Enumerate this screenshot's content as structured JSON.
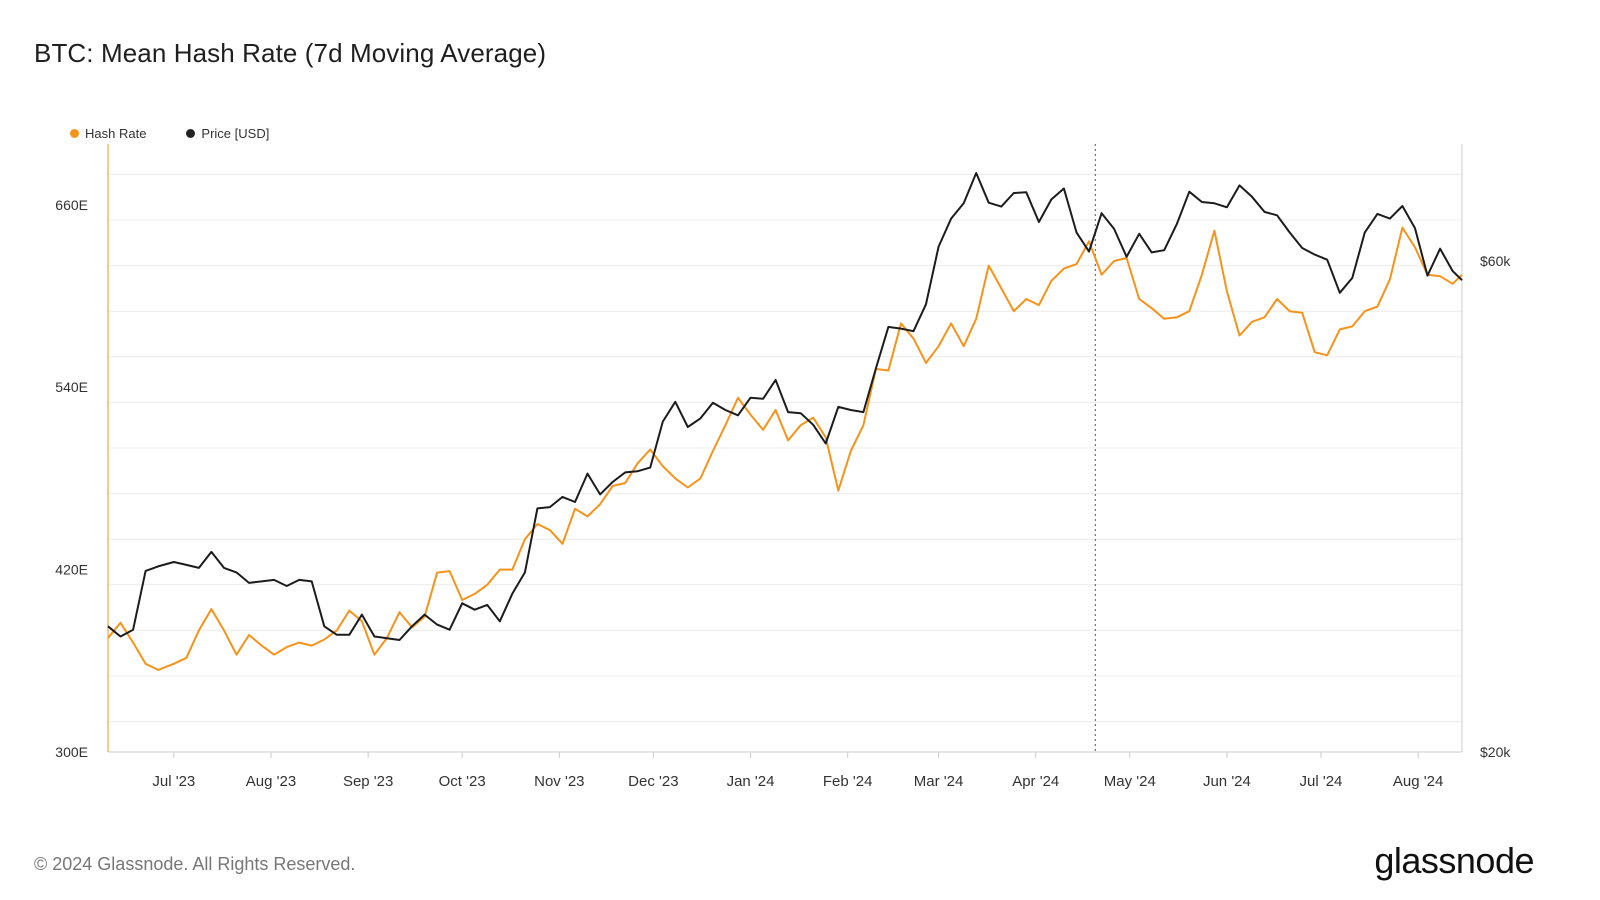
{
  "header": {
    "title": "BTC: Mean Hash Rate (7d Moving Average)"
  },
  "legend": [
    {
      "label": "Hash Rate",
      "color": "#f7931a"
    },
    {
      "label": "Price [USD]",
      "color": "#222222"
    }
  ],
  "footer": {
    "copyright": "© 2024 Glassnode. All Rights Reserved.",
    "brand": "glassnode"
  },
  "colors": {
    "hash_rate": "#f7931a",
    "price": "#1c1c1c",
    "grid": "#ececec",
    "axis": "#cccccc",
    "marker": "#555555"
  },
  "chart_data": {
    "type": "line",
    "title": "BTC: Mean Hash Rate (7d Moving Average)",
    "x_range": [
      "2023-06-10",
      "2024-08-15"
    ],
    "x_ticks": [
      {
        "date": "2023-07-01",
        "label": "Jul '23"
      },
      {
        "date": "2023-08-01",
        "label": "Aug '23"
      },
      {
        "date": "2023-09-01",
        "label": "Sep '23"
      },
      {
        "date": "2023-10-01",
        "label": "Oct '23"
      },
      {
        "date": "2023-11-01",
        "label": "Nov '23"
      },
      {
        "date": "2023-12-01",
        "label": "Dec '23"
      },
      {
        "date": "2024-01-01",
        "label": "Jan '24"
      },
      {
        "date": "2024-02-01",
        "label": "Feb '24"
      },
      {
        "date": "2024-03-01",
        "label": "Mar '24"
      },
      {
        "date": "2024-04-01",
        "label": "Apr '24"
      },
      {
        "date": "2024-05-01",
        "label": "May '24"
      },
      {
        "date": "2024-06-01",
        "label": "Jun '24"
      },
      {
        "date": "2024-07-01",
        "label": "Jul '24"
      },
      {
        "date": "2024-08-01",
        "label": "Aug '24"
      }
    ],
    "y_left": {
      "label": "",
      "range": [
        300,
        700
      ],
      "ticks": [
        {
          "value": 300,
          "label": "300E"
        },
        {
          "value": 420,
          "label": "420E"
        },
        {
          "value": 540,
          "label": "540E"
        },
        {
          "value": 660,
          "label": "660E"
        }
      ]
    },
    "y_right": {
      "label": "",
      "scale": "log",
      "range": [
        20000,
        78000
      ],
      "ticks": [
        {
          "value": 20000,
          "label": "$20k"
        },
        {
          "value": 60000,
          "label": "$60k"
        }
      ]
    },
    "marker_line": {
      "date": "2024-04-20",
      "style": "dotted"
    },
    "series": [
      {
        "name": "Hash Rate",
        "axis": "left",
        "color": "#f7931a",
        "points": [
          [
            "2023-06-10",
            375
          ],
          [
            "2023-06-14",
            385
          ],
          [
            "2023-06-18",
            372
          ],
          [
            "2023-06-22",
            358
          ],
          [
            "2023-06-26",
            354
          ],
          [
            "2023-07-01",
            358
          ],
          [
            "2023-07-05",
            362
          ],
          [
            "2023-07-09",
            380
          ],
          [
            "2023-07-13",
            394
          ],
          [
            "2023-07-17",
            380
          ],
          [
            "2023-07-21",
            364
          ],
          [
            "2023-07-25",
            377
          ],
          [
            "2023-07-29",
            370
          ],
          [
            "2023-08-02",
            364
          ],
          [
            "2023-08-06",
            369
          ],
          [
            "2023-08-10",
            372
          ],
          [
            "2023-08-14",
            370
          ],
          [
            "2023-08-18",
            374
          ],
          [
            "2023-08-22",
            380
          ],
          [
            "2023-08-26",
            393
          ],
          [
            "2023-08-30",
            386
          ],
          [
            "2023-09-03",
            364
          ],
          [
            "2023-09-07",
            375
          ],
          [
            "2023-09-11",
            392
          ],
          [
            "2023-09-15",
            382
          ],
          [
            "2023-09-19",
            389
          ],
          [
            "2023-09-23",
            418
          ],
          [
            "2023-09-27",
            419
          ],
          [
            "2023-10-01",
            400
          ],
          [
            "2023-10-05",
            404
          ],
          [
            "2023-10-09",
            410
          ],
          [
            "2023-10-13",
            420
          ],
          [
            "2023-10-17",
            420
          ],
          [
            "2023-10-21",
            440
          ],
          [
            "2023-10-25",
            450
          ],
          [
            "2023-10-29",
            446
          ],
          [
            "2023-11-02",
            437
          ],
          [
            "2023-11-06",
            460
          ],
          [
            "2023-11-10",
            455
          ],
          [
            "2023-11-14",
            463
          ],
          [
            "2023-11-18",
            475
          ],
          [
            "2023-11-22",
            477
          ],
          [
            "2023-11-26",
            490
          ],
          [
            "2023-11-30",
            499
          ],
          [
            "2023-12-04",
            488
          ],
          [
            "2023-12-08",
            480
          ],
          [
            "2023-12-12",
            474
          ],
          [
            "2023-12-16",
            480
          ],
          [
            "2023-12-20",
            498
          ],
          [
            "2023-12-24",
            515
          ],
          [
            "2023-12-28",
            533
          ],
          [
            "2024-01-01",
            522
          ],
          [
            "2024-01-05",
            512
          ],
          [
            "2024-01-09",
            525
          ],
          [
            "2024-01-13",
            505
          ],
          [
            "2024-01-17",
            515
          ],
          [
            "2024-01-21",
            520
          ],
          [
            "2024-01-25",
            507
          ],
          [
            "2024-01-29",
            472
          ],
          [
            "2024-02-02",
            498
          ],
          [
            "2024-02-06",
            515
          ],
          [
            "2024-02-10",
            552
          ],
          [
            "2024-02-14",
            551
          ],
          [
            "2024-02-18",
            582
          ],
          [
            "2024-02-22",
            572
          ],
          [
            "2024-02-26",
            556
          ],
          [
            "2024-03-01",
            567
          ],
          [
            "2024-03-05",
            582
          ],
          [
            "2024-03-09",
            567
          ],
          [
            "2024-03-13",
            585
          ],
          [
            "2024-03-17",
            620
          ],
          [
            "2024-03-21",
            605
          ],
          [
            "2024-03-25",
            590
          ],
          [
            "2024-03-29",
            598
          ],
          [
            "2024-04-02",
            594
          ],
          [
            "2024-04-06",
            610
          ],
          [
            "2024-04-10",
            618
          ],
          [
            "2024-04-14",
            621
          ],
          [
            "2024-04-18",
            636
          ],
          [
            "2024-04-22",
            614
          ],
          [
            "2024-04-26",
            623
          ],
          [
            "2024-04-30",
            625
          ],
          [
            "2024-05-04",
            598
          ],
          [
            "2024-05-08",
            592
          ],
          [
            "2024-05-12",
            585
          ],
          [
            "2024-05-16",
            586
          ],
          [
            "2024-05-20",
            590
          ],
          [
            "2024-05-24",
            614
          ],
          [
            "2024-05-28",
            643
          ],
          [
            "2024-06-01",
            603
          ],
          [
            "2024-06-05",
            574
          ],
          [
            "2024-06-09",
            583
          ],
          [
            "2024-06-13",
            586
          ],
          [
            "2024-06-17",
            598
          ],
          [
            "2024-06-21",
            590
          ],
          [
            "2024-06-25",
            589
          ],
          [
            "2024-06-29",
            563
          ],
          [
            "2024-07-03",
            561
          ],
          [
            "2024-07-07",
            578
          ],
          [
            "2024-07-11",
            580
          ],
          [
            "2024-07-15",
            590
          ],
          [
            "2024-07-19",
            593
          ],
          [
            "2024-07-23",
            611
          ],
          [
            "2024-07-27",
            645
          ],
          [
            "2024-07-31",
            632
          ],
          [
            "2024-08-04",
            614
          ],
          [
            "2024-08-08",
            613
          ],
          [
            "2024-08-12",
            608
          ],
          [
            "2024-08-15",
            614
          ]
        ]
      },
      {
        "name": "Price [USD]",
        "axis": "right",
        "color": "#1c1c1c",
        "points": [
          [
            "2023-06-10",
            26500
          ],
          [
            "2023-06-14",
            25900
          ],
          [
            "2023-06-18",
            26300
          ],
          [
            "2023-06-22",
            30000
          ],
          [
            "2023-06-26",
            30300
          ],
          [
            "2023-07-01",
            30600
          ],
          [
            "2023-07-05",
            30400
          ],
          [
            "2023-07-09",
            30200
          ],
          [
            "2023-07-13",
            31300
          ],
          [
            "2023-07-17",
            30200
          ],
          [
            "2023-07-21",
            29900
          ],
          [
            "2023-07-25",
            29200
          ],
          [
            "2023-07-29",
            29300
          ],
          [
            "2023-08-02",
            29400
          ],
          [
            "2023-08-06",
            29000
          ],
          [
            "2023-08-10",
            29400
          ],
          [
            "2023-08-14",
            29300
          ],
          [
            "2023-08-18",
            26500
          ],
          [
            "2023-08-22",
            26000
          ],
          [
            "2023-08-26",
            26000
          ],
          [
            "2023-08-30",
            27200
          ],
          [
            "2023-09-03",
            25900
          ],
          [
            "2023-09-07",
            25800
          ],
          [
            "2023-09-11",
            25700
          ],
          [
            "2023-09-15",
            26500
          ],
          [
            "2023-09-19",
            27200
          ],
          [
            "2023-09-23",
            26600
          ],
          [
            "2023-09-27",
            26300
          ],
          [
            "2023-10-01",
            27900
          ],
          [
            "2023-10-05",
            27500
          ],
          [
            "2023-10-09",
            27800
          ],
          [
            "2023-10-13",
            26800
          ],
          [
            "2023-10-17",
            28500
          ],
          [
            "2023-10-21",
            29900
          ],
          [
            "2023-10-25",
            34500
          ],
          [
            "2023-10-29",
            34600
          ],
          [
            "2023-11-02",
            35400
          ],
          [
            "2023-11-06",
            35000
          ],
          [
            "2023-11-10",
            37300
          ],
          [
            "2023-11-14",
            35600
          ],
          [
            "2023-11-18",
            36600
          ],
          [
            "2023-11-22",
            37400
          ],
          [
            "2023-11-26",
            37500
          ],
          [
            "2023-11-30",
            37800
          ],
          [
            "2023-12-04",
            41900
          ],
          [
            "2023-12-08",
            43800
          ],
          [
            "2023-12-12",
            41400
          ],
          [
            "2023-12-16",
            42200
          ],
          [
            "2023-12-20",
            43700
          ],
          [
            "2023-12-24",
            43000
          ],
          [
            "2023-12-28",
            42500
          ],
          [
            "2024-01-01",
            44200
          ],
          [
            "2024-01-05",
            44100
          ],
          [
            "2024-01-09",
            46000
          ],
          [
            "2024-01-13",
            42800
          ],
          [
            "2024-01-17",
            42700
          ],
          [
            "2024-01-21",
            41600
          ],
          [
            "2024-01-25",
            39900
          ],
          [
            "2024-01-29",
            43300
          ],
          [
            "2024-02-02",
            43000
          ],
          [
            "2024-02-06",
            42800
          ],
          [
            "2024-02-10",
            47200
          ],
          [
            "2024-02-14",
            51800
          ],
          [
            "2024-02-18",
            51600
          ],
          [
            "2024-02-22",
            51300
          ],
          [
            "2024-02-26",
            54500
          ],
          [
            "2024-03-01",
            62000
          ],
          [
            "2024-03-05",
            66000
          ],
          [
            "2024-03-09",
            68300
          ],
          [
            "2024-03-13",
            73100
          ],
          [
            "2024-03-17",
            68400
          ],
          [
            "2024-03-21",
            67800
          ],
          [
            "2024-03-25",
            69900
          ],
          [
            "2024-03-29",
            70000
          ],
          [
            "2024-04-02",
            65500
          ],
          [
            "2024-04-06",
            68900
          ],
          [
            "2024-04-10",
            70600
          ],
          [
            "2024-04-14",
            64000
          ],
          [
            "2024-04-18",
            61300
          ],
          [
            "2024-04-22",
            66800
          ],
          [
            "2024-04-26",
            64500
          ],
          [
            "2024-04-30",
            60600
          ],
          [
            "2024-05-04",
            63800
          ],
          [
            "2024-05-08",
            61200
          ],
          [
            "2024-05-12",
            61500
          ],
          [
            "2024-05-16",
            65200
          ],
          [
            "2024-05-20",
            70100
          ],
          [
            "2024-05-24",
            68500
          ],
          [
            "2024-05-28",
            68300
          ],
          [
            "2024-06-01",
            67700
          ],
          [
            "2024-06-05",
            71100
          ],
          [
            "2024-06-09",
            69300
          ],
          [
            "2024-06-13",
            67000
          ],
          [
            "2024-06-17",
            66500
          ],
          [
            "2024-06-21",
            64000
          ],
          [
            "2024-06-25",
            61800
          ],
          [
            "2024-06-29",
            60900
          ],
          [
            "2024-07-03",
            60200
          ],
          [
            "2024-07-07",
            55900
          ],
          [
            "2024-07-11",
            57800
          ],
          [
            "2024-07-15",
            64000
          ],
          [
            "2024-07-19",
            66700
          ],
          [
            "2024-07-23",
            66000
          ],
          [
            "2024-07-27",
            67900
          ],
          [
            "2024-07-31",
            64600
          ],
          [
            "2024-08-04",
            58100
          ],
          [
            "2024-08-08",
            61700
          ],
          [
            "2024-08-12",
            58700
          ],
          [
            "2024-08-15",
            57500
          ]
        ]
      }
    ]
  }
}
